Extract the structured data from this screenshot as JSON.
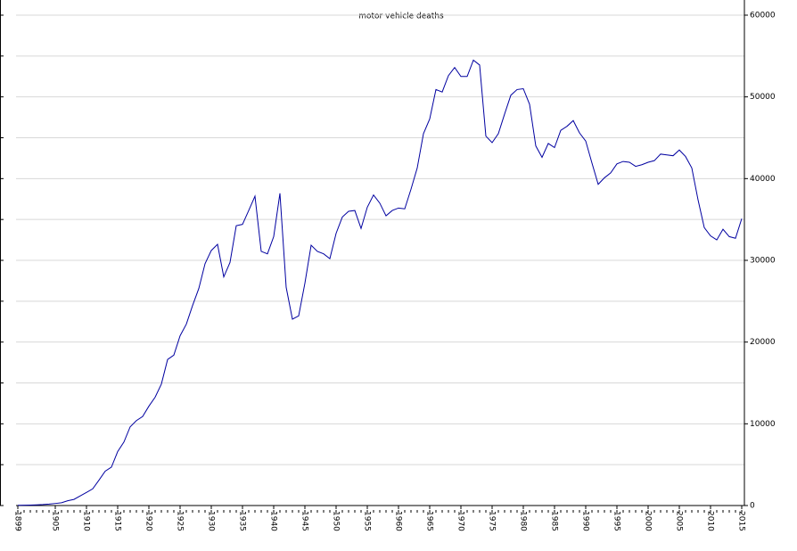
{
  "chart_data": {
    "type": "line",
    "title": "motor vehicle deaths",
    "x": [
      1899,
      1900,
      1901,
      1902,
      1903,
      1904,
      1905,
      1906,
      1907,
      1908,
      1909,
      1910,
      1911,
      1912,
      1913,
      1914,
      1915,
      1916,
      1917,
      1918,
      1919,
      1920,
      1921,
      1922,
      1923,
      1924,
      1925,
      1926,
      1927,
      1928,
      1929,
      1930,
      1931,
      1932,
      1933,
      1934,
      1935,
      1936,
      1937,
      1938,
      1939,
      1940,
      1941,
      1942,
      1943,
      1944,
      1945,
      1946,
      1947,
      1948,
      1949,
      1950,
      1951,
      1952,
      1953,
      1954,
      1955,
      1956,
      1957,
      1958,
      1959,
      1960,
      1961,
      1962,
      1963,
      1964,
      1965,
      1966,
      1967,
      1968,
      1969,
      1970,
      1971,
      1972,
      1973,
      1974,
      1975,
      1976,
      1977,
      1978,
      1979,
      1980,
      1981,
      1982,
      1983,
      1984,
      1985,
      1986,
      1987,
      1988,
      1989,
      1990,
      1991,
      1992,
      1993,
      1994,
      1995,
      1996,
      1997,
      1998,
      1999,
      2000,
      2001,
      2002,
      2003,
      2004,
      2005,
      2006,
      2007,
      2008,
      2009,
      2010,
      2011,
      2012,
      2013,
      2014,
      2015
    ],
    "series": [
      {
        "name": "motor vehicle deaths",
        "color": "#0000a0",
        "values": [
          26,
          36,
          54,
          79,
          117,
          172,
          252,
          338,
          581,
          751,
          1174,
          1599,
          2043,
          3100,
          4200,
          4700,
          6600,
          7766,
          9630,
          10390,
          10896,
          12155,
          13253,
          14859,
          17870,
          18400,
          20771,
          22194,
          24470,
          26557,
          29592,
          31204,
          31963,
          27979,
          29746,
          34240,
          34400,
          36100,
          37850,
          31100,
          30800,
          32900,
          38200,
          26700,
          22800,
          23200,
          27200,
          31850,
          31100,
          30800,
          30200,
          33300,
          35300,
          36000,
          36100,
          33900,
          36500,
          38000,
          37000,
          35450,
          36100,
          36400,
          36300,
          38700,
          41300,
          45500,
          47300,
          50900,
          50600,
          52600,
          53600,
          52500,
          52500,
          54500,
          53900,
          45200,
          44400,
          45500,
          47900,
          50200,
          50900,
          51000,
          49100,
          44000,
          42600,
          44300,
          43800,
          45900,
          46400,
          47100,
          45600,
          44600,
          41900,
          39300,
          40100,
          40700,
          41800,
          42100,
          42000,
          41500,
          41700,
          42000,
          42200,
          43000,
          42900,
          42800,
          43500,
          42700,
          41300,
          37400,
          34000,
          33000,
          32500,
          33800,
          32900,
          32700,
          35100
        ]
      }
    ],
    "xlim": [
      1899,
      2015
    ],
    "xticks": [
      1899,
      1905,
      1910,
      1915,
      1920,
      1925,
      1930,
      1935,
      1940,
      1945,
      1950,
      1955,
      1960,
      1965,
      1970,
      1975,
      1980,
      1985,
      1990,
      1995,
      2000,
      2005,
      2010,
      2015
    ],
    "ylim": [
      0,
      60000
    ],
    "yticks": [
      0,
      10000,
      20000,
      30000,
      40000,
      50000,
      60000
    ],
    "yminor": [
      5000,
      15000,
      25000,
      35000,
      45000,
      55000
    ],
    "grid": true
  }
}
